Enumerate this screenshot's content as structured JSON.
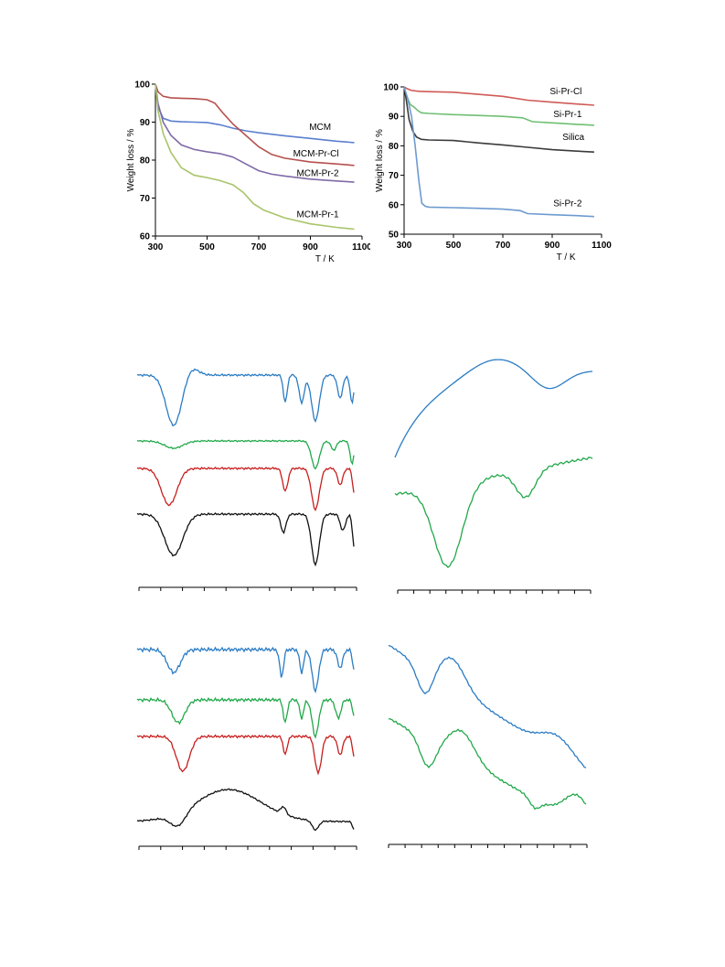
{
  "charts": [
    {
      "id": "tga-mcm",
      "type": "line",
      "title": "",
      "xlabel": "T / K",
      "ylabel": "Weight loss / %",
      "xlim": [
        300,
        1100
      ],
      "ylim": [
        60,
        100
      ],
      "xticks": [
        300,
        500,
        700,
        900,
        1100
      ],
      "yticks": [
        60,
        70,
        80,
        90,
        100
      ],
      "series": [
        {
          "name": "MCM",
          "color": "#5b7fcf",
          "labelAt": [
            980,
            88
          ],
          "x": [
            300,
            310,
            330,
            360,
            400,
            450,
            500,
            550,
            600,
            650,
            700,
            800,
            900,
            1000,
            1070
          ],
          "y": [
            100,
            94,
            91,
            90.3,
            90.1,
            90,
            89.9,
            89.3,
            88.4,
            87.7,
            87.2,
            86.4,
            85.7,
            85,
            84.6
          ]
        },
        {
          "name": "MCM-Pr-Cl",
          "color": "#b5504e",
          "labelAt": [
            1010,
            81
          ],
          "x": [
            300,
            310,
            330,
            360,
            400,
            450,
            500,
            530,
            560,
            600,
            650,
            700,
            750,
            800,
            900,
            1000,
            1070
          ],
          "y": [
            100,
            98,
            96.8,
            96.4,
            96.3,
            96.2,
            95.9,
            95,
            92.5,
            89.5,
            86.5,
            83.5,
            81.5,
            80.5,
            79.5,
            79,
            78.6
          ]
        },
        {
          "name": "MCM-Pr-2",
          "color": "#7f6aa8",
          "labelAt": [
            1010,
            75.8
          ],
          "x": [
            300,
            310,
            330,
            360,
            400,
            450,
            500,
            550,
            600,
            650,
            700,
            750,
            800,
            900,
            1000,
            1070
          ],
          "y": [
            100,
            95,
            90,
            86.5,
            84,
            82.8,
            82.2,
            81.7,
            80.8,
            79,
            77.2,
            76.3,
            75.8,
            75,
            74.5,
            74.2
          ]
        },
        {
          "name": "MCM-Pr-1",
          "color": "#a9c46a",
          "labelAt": [
            1010,
            65
          ],
          "x": [
            300,
            310,
            330,
            360,
            400,
            450,
            500,
            550,
            600,
            640,
            680,
            720,
            800,
            900,
            1000,
            1070
          ],
          "y": [
            100,
            93,
            87,
            82,
            78,
            76,
            75.4,
            74.6,
            73.5,
            71.5,
            68.5,
            66.8,
            64.8,
            63.2,
            62.3,
            61.8
          ]
        }
      ]
    },
    {
      "id": "tga-silica",
      "type": "line",
      "title": "",
      "xlabel": "T / K",
      "ylabel": "Weight loss / %",
      "xlim": [
        300,
        1100
      ],
      "ylim": [
        50,
        100
      ],
      "xticks": [
        300,
        500,
        700,
        900,
        1100
      ],
      "yticks": [
        50,
        60,
        70,
        80,
        90,
        100
      ],
      "series": [
        {
          "name": "Si-Pr-Cl",
          "color": "#d05a56",
          "labelAt": [
            1020,
            97.5
          ],
          "x": [
            300,
            310,
            330,
            360,
            400,
            500,
            600,
            700,
            800,
            900,
            1000,
            1070
          ],
          "y": [
            100,
            99.5,
            98.8,
            98.5,
            98.4,
            98.2,
            97.5,
            96.8,
            95.5,
            94.8,
            94.2,
            93.8
          ]
        },
        {
          "name": "Si-Pr-1",
          "color": "#6fbf73",
          "labelAt": [
            1020,
            89.8
          ],
          "x": [
            300,
            310,
            325,
            340,
            355,
            370,
            400,
            500,
            600,
            700,
            780,
            820,
            900,
            1000,
            1070
          ],
          "y": [
            100,
            97,
            94,
            93.2,
            92,
            91.2,
            91,
            90.6,
            90.3,
            90,
            89.5,
            88.2,
            87.8,
            87.3,
            87
          ]
        },
        {
          "name": "Silica",
          "color": "#3b3b3b",
          "labelAt": [
            1030,
            82
          ],
          "x": [
            300,
            310,
            320,
            335,
            350,
            370,
            400,
            500,
            600,
            700,
            800,
            900,
            1000,
            1070
          ],
          "y": [
            100,
            95,
            89,
            85,
            83,
            82.2,
            82,
            81.8,
            81,
            80.3,
            79.5,
            78.7,
            78.2,
            77.9
          ]
        },
        {
          "name": "Si-Pr-2",
          "color": "#6e9ad0",
          "labelAt": [
            1020,
            59.5
          ],
          "x": [
            300,
            315,
            330,
            345,
            360,
            372,
            385,
            400,
            500,
            600,
            700,
            770,
            800,
            900,
            1000,
            1070
          ],
          "y": [
            100,
            96,
            90,
            80,
            68,
            60.5,
            59.5,
            59.2,
            59,
            58.8,
            58.5,
            58,
            57,
            56.6,
            56.3,
            56
          ]
        }
      ]
    }
  ]
}
